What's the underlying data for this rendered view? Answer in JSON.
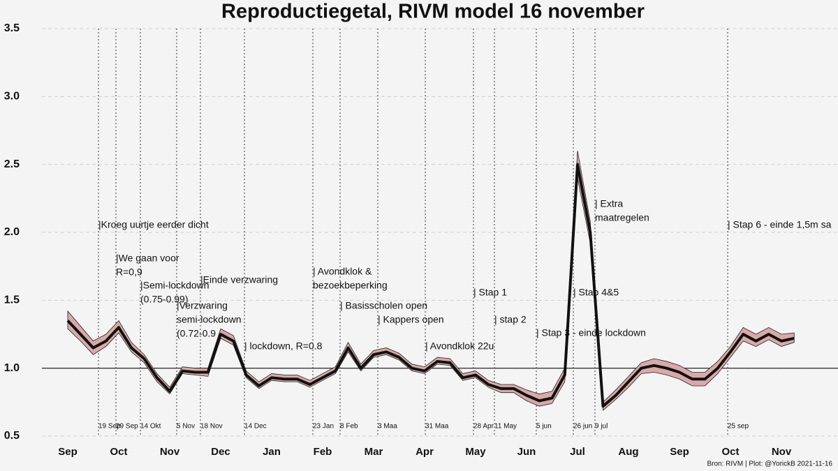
{
  "chart_data": {
    "type": "line",
    "title": "Reproductiegetal, RIVM model 16 november",
    "footer": "Bron: RIVM | Plot: @YorickB  2021-11-16",
    "categories": [
      "Sep",
      null,
      null,
      null,
      "Oct",
      null,
      null,
      null,
      "Nov",
      null,
      null,
      null,
      "Dec",
      null,
      null,
      null,
      "Jan",
      null,
      null,
      null,
      "Feb",
      null,
      null,
      null,
      "Mar",
      null,
      null,
      null,
      "Apr",
      null,
      null,
      null,
      "May",
      null,
      null,
      null,
      "Jun",
      null,
      null,
      null,
      "Jul",
      null,
      null,
      null,
      "Aug",
      null,
      null,
      null,
      "Sep",
      null,
      null,
      null,
      "Oct",
      null,
      null,
      null,
      "Nov",
      null
    ],
    "values": [
      1.35,
      1.25,
      1.15,
      1.2,
      1.3,
      1.15,
      1.07,
      0.93,
      0.83,
      0.98,
      0.97,
      0.97,
      1.25,
      1.2,
      0.95,
      0.87,
      0.93,
      0.92,
      0.92,
      0.88,
      0.93,
      0.98,
      1.15,
      1.0,
      1.1,
      1.12,
      1.08,
      1.0,
      0.98,
      1.05,
      1.04,
      0.93,
      0.95,
      0.88,
      0.85,
      0.85,
      0.8,
      0.76,
      0.78,
      0.95,
      2.5,
      2.0,
      0.72,
      0.8,
      0.9,
      1.0,
      1.02,
      1.0,
      0.97,
      0.92,
      0.92,
      1.0,
      1.12,
      1.25,
      1.2,
      1.25,
      1.2,
      1.22
    ],
    "lower": [
      1.29,
      1.2,
      1.1,
      1.16,
      1.26,
      1.12,
      1.04,
      0.9,
      0.81,
      0.96,
      0.95,
      0.94,
      1.22,
      1.17,
      0.93,
      0.85,
      0.91,
      0.9,
      0.9,
      0.86,
      0.91,
      0.96,
      1.12,
      0.98,
      1.08,
      1.1,
      1.06,
      0.98,
      0.96,
      1.03,
      1.02,
      0.91,
      0.93,
      0.86,
      0.82,
      0.82,
      0.76,
      0.72,
      0.74,
      0.9,
      2.4,
      1.92,
      0.69,
      0.77,
      0.86,
      0.96,
      0.97,
      0.95,
      0.92,
      0.87,
      0.87,
      0.96,
      1.08,
      1.2,
      1.16,
      1.21,
      1.16,
      1.19
    ],
    "upper": [
      1.42,
      1.31,
      1.2,
      1.25,
      1.35,
      1.19,
      1.1,
      0.96,
      0.86,
      1.01,
      1.0,
      1.0,
      1.29,
      1.24,
      0.98,
      0.9,
      0.96,
      0.95,
      0.95,
      0.91,
      0.96,
      1.01,
      1.19,
      1.03,
      1.13,
      1.15,
      1.11,
      1.03,
      1.01,
      1.08,
      1.07,
      0.96,
      0.98,
      0.91,
      0.88,
      0.88,
      0.84,
      0.81,
      0.83,
      1.0,
      2.6,
      2.08,
      0.75,
      0.84,
      0.94,
      1.04,
      1.07,
      1.05,
      1.02,
      0.97,
      0.97,
      1.05,
      1.16,
      1.3,
      1.25,
      1.3,
      1.25,
      1.26
    ],
    "color": "#111111",
    "band_color": "#d9a9a9",
    "ylim": [
      0.5,
      3.5
    ],
    "yticks": [
      {
        "value": 0.5,
        "label": "0.5"
      },
      {
        "value": 1,
        "label": "1.0"
      },
      {
        "value": 1.5,
        "label": "1.5"
      },
      {
        "value": 2,
        "label": "2.0"
      },
      {
        "value": 2.5,
        "label": "2.5"
      },
      {
        "value": 3,
        "label": "3.0"
      },
      {
        "value": 3.5,
        "label": "3.5"
      }
    ],
    "hline": {
      "value": 1,
      "label": "1.0"
    },
    "grid": true,
    "annotations": [
      {
        "date": "19 Sep",
        "text": [
          "|Kroeg uurtje eerder dicht"
        ]
      },
      {
        "date": "29 Sep",
        "text": [
          "|We gaan voor",
          "R=0,9"
        ]
      },
      {
        "date": "14 Okt",
        "text": [
          "|Semi-lockdown",
          "(0.75-0.99)"
        ]
      },
      {
        "date": "5 Nov",
        "text": [
          "|Verzwaring",
          "semi-lockdown",
          "(0.72-0.9"
        ]
      },
      {
        "date": "18 Nov",
        "text": [
          "|Einde verzwaring"
        ]
      },
      {
        "date": "14 Dec",
        "text": [
          "| lockdown, R=0.8"
        ]
      },
      {
        "date": "23 Jan",
        "text": [
          "| Avondklok &",
          "bezoekbeperking"
        ]
      },
      {
        "date": "8 Feb",
        "text": [
          "| Basisscholen open"
        ]
      },
      {
        "date": "3 Maa",
        "text": [
          "| Kappers open"
        ]
      },
      {
        "date": "31 Maa",
        "text": [
          "| Avondklok 22u"
        ]
      },
      {
        "date": "28 Apr",
        "text": [
          "| Stap 1"
        ]
      },
      {
        "date": "11 May",
        "text": [
          "| stap 2"
        ]
      },
      {
        "date": "5 jun",
        "text": [
          "| Stap 3 - einde lockdown"
        ]
      },
      {
        "date": "26 jun",
        "text": [
          "| Stap 4&5"
        ]
      },
      {
        "date": "9 jul",
        "text": [
          "| Extra",
          "maatregelen"
        ]
      },
      {
        "date": "25 sep",
        "text": [
          "| Stap 6 - einde 1,5m sa"
        ]
      }
    ]
  }
}
